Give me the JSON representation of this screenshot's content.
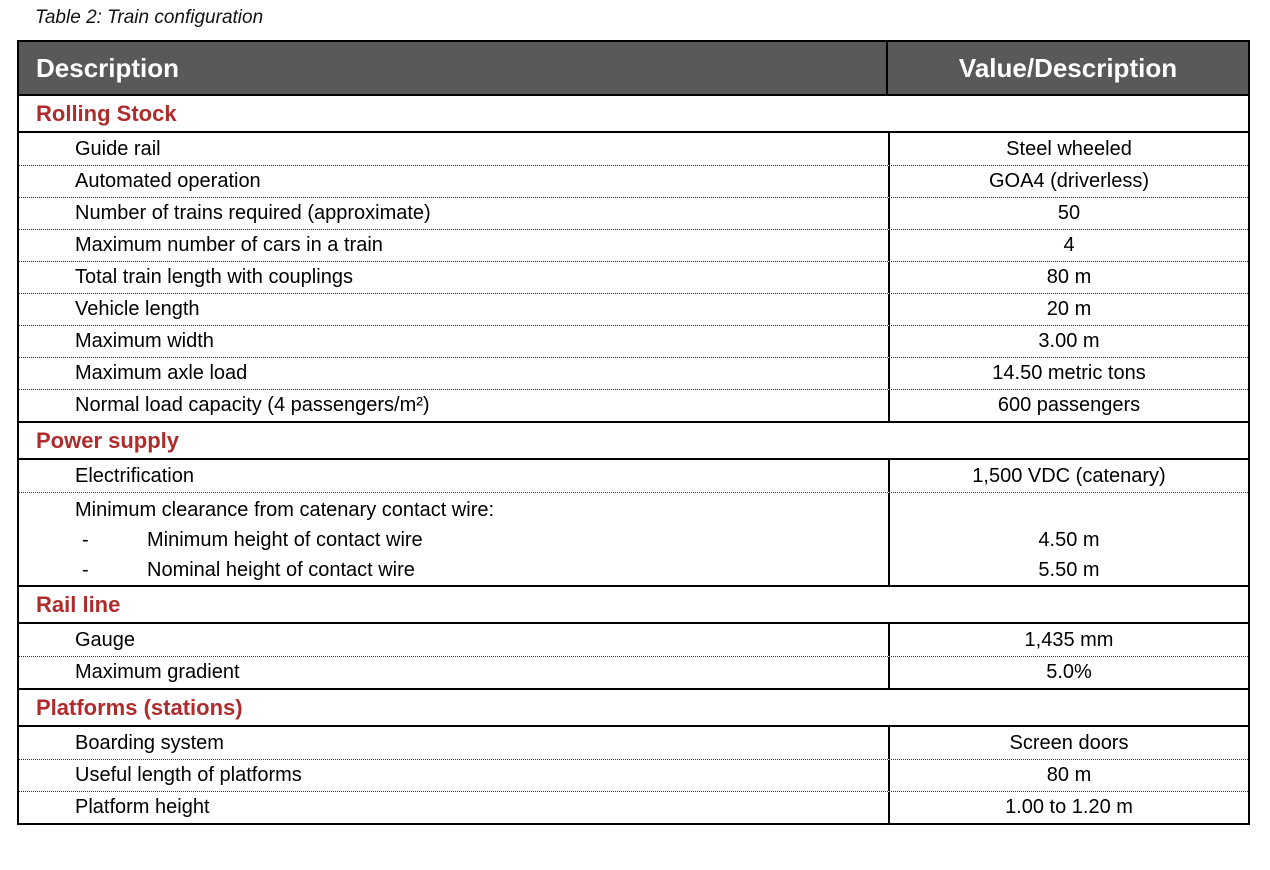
{
  "caption": "Table 2: Train configuration",
  "colors": {
    "header_background": "#595959",
    "header_text": "#ffffff",
    "section_title_text": "#B02C2C",
    "border": "#000000"
  },
  "header": {
    "description": "Description",
    "value": "Value/Description"
  },
  "sections": [
    {
      "title": "Rolling Stock",
      "rows": [
        {
          "label": "Guide rail",
          "value": "Steel wheeled"
        },
        {
          "label": "Automated operation",
          "value": "GOA4 (driverless)"
        },
        {
          "label": "Number of trains required (approximate)",
          "value": "50"
        },
        {
          "label": "Maximum number of cars in a train",
          "value": "4"
        },
        {
          "label": "Total train length with couplings",
          "value": "80 m"
        },
        {
          "label": "Vehicle length",
          "value": "20 m"
        },
        {
          "label": "Maximum width",
          "value": "3.00 m"
        },
        {
          "label": "Maximum axle load",
          "value": "14.50 metric tons"
        },
        {
          "label": "Normal load capacity (4 passengers/m²)",
          "value": "600 passengers"
        }
      ]
    },
    {
      "title": "Power supply",
      "rows": [
        {
          "label": "Electrification",
          "value": "1,500 VDC (catenary)"
        }
      ],
      "group": {
        "label": "Minimum clearance from catenary contact wire:",
        "subrows": [
          {
            "dash": "-",
            "label": "Minimum height of contact wire",
            "value": "4.50 m"
          },
          {
            "dash": "-",
            "label": "Nominal height of contact wire",
            "value": "5.50 m"
          }
        ]
      }
    },
    {
      "title": "Rail line",
      "rows": [
        {
          "label": "Gauge",
          "value": "1,435 mm"
        },
        {
          "label": "Maximum gradient",
          "value": "5.0%"
        }
      ]
    },
    {
      "title": "Platforms (stations)",
      "rows": [
        {
          "label": "Boarding system",
          "value": "Screen doors"
        },
        {
          "label": "Useful length of platforms",
          "value": "80 m"
        },
        {
          "label": "Platform height",
          "value": "1.00 to 1.20 m"
        }
      ]
    }
  ]
}
